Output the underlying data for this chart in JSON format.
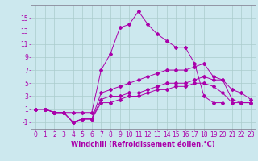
{
  "background_color": "#cce8ee",
  "grid_color": "#aacccc",
  "line_color": "#aa00aa",
  "xlabel": "Windchill (Refroidissement éolien,°C)",
  "xlabel_fontsize": 6,
  "tick_fontsize": 5.5,
  "xlim": [
    -0.5,
    23.5
  ],
  "ylim": [
    -2,
    17
  ],
  "yticks": [
    -1,
    1,
    3,
    5,
    7,
    9,
    11,
    13,
    15
  ],
  "xticks": [
    0,
    1,
    2,
    3,
    4,
    5,
    6,
    7,
    8,
    9,
    10,
    11,
    12,
    13,
    14,
    15,
    16,
    17,
    18,
    19,
    20,
    21,
    22,
    23
  ],
  "series_x": [
    [
      0,
      1,
      2,
      3,
      4,
      5,
      6,
      7,
      8,
      9,
      10,
      11,
      12,
      13,
      14,
      15,
      16,
      17,
      18,
      19,
      20
    ],
    [
      0,
      1,
      2,
      3,
      4,
      5,
      6,
      7,
      8,
      9,
      10,
      11,
      12,
      13,
      14,
      15,
      16,
      17,
      18,
      19,
      20,
      21,
      22,
      23
    ],
    [
      0,
      1,
      2,
      3,
      4,
      5,
      6,
      7,
      8,
      9,
      10,
      11,
      12,
      13,
      14,
      15,
      16,
      17,
      18,
      19,
      20,
      21,
      22,
      23
    ],
    [
      0,
      1,
      2,
      3,
      4,
      5,
      6,
      7,
      8,
      9,
      10,
      11,
      12,
      13,
      14,
      15,
      16,
      17,
      18,
      19,
      20,
      21,
      22,
      23
    ]
  ],
  "series_y": [
    [
      1,
      1,
      0.5,
      0.5,
      0.5,
      0.5,
      0.5,
      7.0,
      9.5,
      13.5,
      14.0,
      16.0,
      14.0,
      12.5,
      11.5,
      10.5,
      10.5,
      8.0,
      3.0,
      2.0,
      2.0
    ],
    [
      1,
      1,
      0.5,
      0.5,
      -1.0,
      -0.5,
      -0.5,
      3.5,
      4.0,
      4.5,
      5.0,
      5.5,
      6.0,
      6.5,
      7.0,
      7.0,
      7.0,
      7.5,
      8.0,
      6.0,
      5.5,
      4.0,
      3.5,
      2.5
    ],
    [
      1,
      1,
      0.5,
      0.5,
      -1.0,
      -0.5,
      -0.5,
      2.5,
      3.0,
      3.0,
      3.5,
      3.5,
      4.0,
      4.5,
      5.0,
      5.0,
      5.0,
      5.5,
      6.0,
      5.5,
      5.5,
      2.5,
      2.0,
      2.0
    ],
    [
      1,
      1,
      0.5,
      0.5,
      -1.0,
      -0.5,
      -0.5,
      2.0,
      2.0,
      2.5,
      3.0,
      3.0,
      3.5,
      4.0,
      4.0,
      4.5,
      4.5,
      5.0,
      5.0,
      4.5,
      3.5,
      2.0,
      2.0,
      2.0
    ]
  ]
}
